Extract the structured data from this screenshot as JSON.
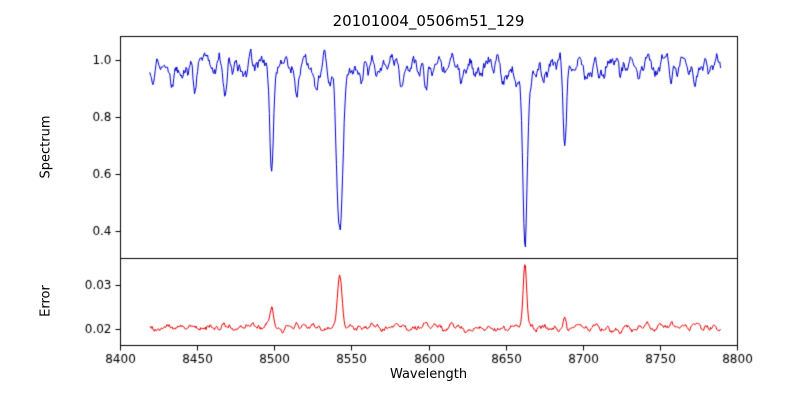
{
  "chart_data": {
    "type": "line",
    "title": "20101004_0506m51_129",
    "xlabel": "Wavelength",
    "x_range": [
      8400,
      8800
    ],
    "x_ticks": {
      "values": [
        8400,
        8450,
        8500,
        8550,
        8600,
        8650,
        8700,
        8750,
        8800
      ],
      "labels": [
        "8400",
        "8450",
        "8500",
        "8550",
        "8600",
        "8650",
        "8700",
        "8750",
        "8800"
      ]
    },
    "axis_color": "#000000",
    "background": "#ffffff",
    "grid": false,
    "legend": false,
    "panels": [
      {
        "name": "spectrum",
        "ylabel": "Spectrum",
        "ylim": [
          0.305,
          1.085
        ],
        "y_ticks": {
          "values": [
            0.4,
            0.6,
            0.8,
            1.0
          ],
          "labels": [
            "0.4",
            "0.6",
            "0.8",
            "1.0"
          ]
        },
        "series": {
          "name": "normalized-spectrum",
          "color": "#0000cc",
          "baseline": 0.985,
          "noise_sigma": 0.02,
          "seed": 13,
          "x_start": 8419,
          "x_end": 8789,
          "x_step": 0.5,
          "feature_direction": "down",
          "features": [
            {
              "center": 8498.0,
              "amplitude": 0.4,
              "width": 1.2
            },
            {
              "center": 8542.1,
              "amplitude": 0.57,
              "width": 1.9
            },
            {
              "center": 8542.1,
              "amplitude": 0.04,
              "width": 6.0
            },
            {
              "center": 8662.2,
              "amplitude": 0.56,
              "width": 1.5
            },
            {
              "center": 8662.2,
              "amplitude": 0.04,
              "width": 6.0
            },
            {
              "center": 8688.0,
              "amplitude": 0.26,
              "width": 1.1
            },
            {
              "center": 8434,
              "amplitude": 0.05,
              "width": 0.9
            },
            {
              "center": 8448,
              "amplitude": 0.07,
              "width": 1.0
            },
            {
              "center": 8468,
              "amplitude": 0.09,
              "width": 1.0
            },
            {
              "center": 8476,
              "amplitude": 0.05,
              "width": 0.9
            },
            {
              "center": 8514,
              "amplitude": 0.11,
              "width": 1.1
            },
            {
              "center": 8527,
              "amplitude": 0.07,
              "width": 0.9
            },
            {
              "center": 8556,
              "amplitude": 0.06,
              "width": 0.9
            },
            {
              "center": 8582,
              "amplitude": 0.07,
              "width": 1.0
            },
            {
              "center": 8598,
              "amplitude": 0.09,
              "width": 1.0
            },
            {
              "center": 8611,
              "amplitude": 0.05,
              "width": 0.9
            },
            {
              "center": 8621,
              "amplitude": 0.08,
              "width": 1.0
            },
            {
              "center": 8634,
              "amplitude": 0.05,
              "width": 0.9
            },
            {
              "center": 8648,
              "amplitude": 0.07,
              "width": 1.0
            },
            {
              "center": 8674,
              "amplitude": 0.08,
              "width": 0.9
            },
            {
              "center": 8701,
              "amplitude": 0.04,
              "width": 0.8
            },
            {
              "center": 8713,
              "amplitude": 0.06,
              "width": 0.9
            },
            {
              "center": 8724,
              "amplitude": 0.05,
              "width": 0.8
            },
            {
              "center": 8736,
              "amplitude": 0.07,
              "width": 0.9
            },
            {
              "center": 8747,
              "amplitude": 0.05,
              "width": 0.8
            },
            {
              "center": 8757,
              "amplitude": 0.08,
              "width": 1.0
            },
            {
              "center": 8772,
              "amplitude": 0.06,
              "width": 0.9
            }
          ]
        }
      },
      {
        "name": "error",
        "ylabel": "Error",
        "ylim": [
          0.0165,
          0.036
        ],
        "y_ticks": {
          "values": [
            0.02,
            0.03
          ],
          "labels": [
            "0.02",
            "0.03"
          ]
        },
        "series": {
          "name": "error-spectrum",
          "color": "#e60000",
          "baseline": 0.0205,
          "noise_sigma": 0.00045,
          "seed": 99,
          "x_start": 8419,
          "x_end": 8789,
          "x_step": 0.5,
          "feature_direction": "up",
          "features": [
            {
              "center": 8498.0,
              "amplitude": 0.0055,
              "width": 1.1
            },
            {
              "center": 8542.1,
              "amplitude": 0.0125,
              "width": 1.5
            },
            {
              "center": 8662.2,
              "amplitude": 0.014,
              "width": 1.1
            },
            {
              "center": 8688.0,
              "amplitude": 0.0028,
              "width": 0.9
            },
            {
              "center": 8514.0,
              "amplitude": 0.0012,
              "width": 0.9
            },
            {
              "center": 8598.0,
              "amplitude": 0.0008,
              "width": 0.9
            },
            {
              "center": 8757.0,
              "amplitude": 0.001,
              "width": 0.9
            }
          ]
        }
      }
    ]
  }
}
